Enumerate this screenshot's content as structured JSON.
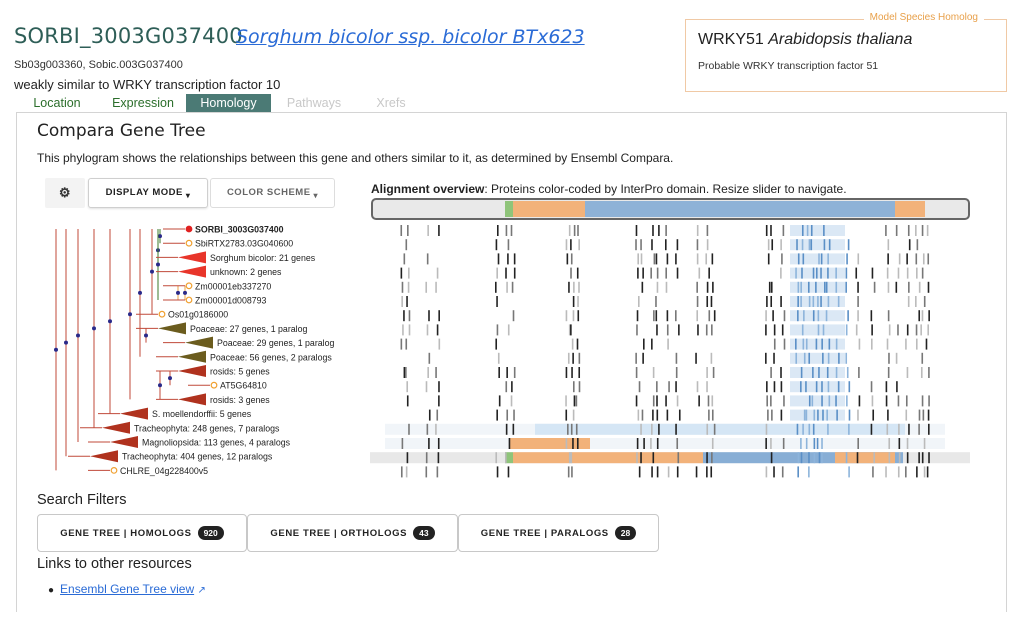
{
  "header": {
    "gene_id": "SORBI_3003G037400",
    "species": "Sorghum bicolor ssp. bicolor BTx623",
    "synonyms": "Sb03g003360, Sobic.003G037400",
    "description": "weakly similar to WRKY transcription factor 10"
  },
  "homolog": {
    "legend": "Model Species Homolog",
    "gene": "WRKY51",
    "species": "Arabidopsis thaliana",
    "description": "Probable WRKY transcription factor 51"
  },
  "tabs": [
    {
      "label": "Location",
      "state": "enabled"
    },
    {
      "label": "Expression",
      "state": "enabled"
    },
    {
      "label": "Homology",
      "state": "active"
    },
    {
      "label": "Pathways",
      "state": "disabled"
    },
    {
      "label": "Xrefs",
      "state": "disabled"
    }
  ],
  "panel": {
    "title": "Compara Gene Tree",
    "description": "This phylogram shows the relationships between this gene and others similar to it, as determined by Ensembl Compara."
  },
  "toolbar": {
    "settings_icon": "gear-icon",
    "display_mode": "DISPLAY MODE",
    "color_scheme": "COLOR SCHEME"
  },
  "alignment": {
    "title_bold": "Alignment overview",
    "title_rest": ": Proteins color-coded by InterPro domain. Resize slider to navigate."
  },
  "tree": {
    "leaves": [
      {
        "label": "SORBI_3003G037400",
        "type": "gene",
        "bold": true,
        "color": "#e02020"
      },
      {
        "label": "SbiRTX2783.03G040600",
        "type": "gene",
        "color": "#f0a030"
      },
      {
        "label": "Sorghum bicolor: 21 genes",
        "type": "clade",
        "color": "#e8352a"
      },
      {
        "label": "unknown: 2 genes",
        "type": "clade",
        "color": "#e8352a"
      },
      {
        "label": "Zm00001eb337270",
        "type": "gene",
        "color": "#f0a030"
      },
      {
        "label": "Zm00001d008793",
        "type": "gene",
        "color": "#f0a030"
      },
      {
        "label": "Os01g0186000",
        "type": "gene",
        "color": "#f0a030"
      },
      {
        "label": "Poaceae: 27 genes, 1 paralog",
        "type": "clade",
        "color": "#6b5c1e"
      },
      {
        "label": "Poaceae: 29 genes, 1 paralog",
        "type": "clade",
        "color": "#6b5c1e"
      },
      {
        "label": "Poaceae: 56 genes, 2 paralogs",
        "type": "clade",
        "color": "#6b5c1e"
      },
      {
        "label": "rosids: 5 genes",
        "type": "clade",
        "color": "#b0321e"
      },
      {
        "label": "AT5G64810",
        "type": "gene",
        "color": "#f0a030"
      },
      {
        "label": "rosids: 3 genes",
        "type": "clade",
        "color": "#b0321e"
      },
      {
        "label": "S. moellendorffii: 5 genes",
        "type": "clade",
        "color": "#b0321e"
      },
      {
        "label": "Tracheophyta: 248 genes, 7 paralogs",
        "type": "clade",
        "color": "#b0321e"
      },
      {
        "label": "Magnoliopsida: 113 genes, 4 paralogs",
        "type": "clade",
        "color": "#b0321e"
      },
      {
        "label": "Tracheophyta: 404 genes, 12 paralogs",
        "type": "clade",
        "color": "#b0321e"
      },
      {
        "label": "CHLRE_04g228400v5",
        "type": "gene",
        "color": "#f0a030"
      }
    ]
  },
  "colors": {
    "accent": "#4b7a75",
    "link": "#2a6bd6",
    "domain_orange": "#f2b27a",
    "domain_blue": "#6f9fd0",
    "domain_green": "#8fc47a",
    "domain_light_blue": "#d5e6f5"
  },
  "search_filters": {
    "title": "Search Filters",
    "buttons": [
      {
        "label": "GENE TREE | HOMOLOGS",
        "count": "920"
      },
      {
        "label": "GENE TREE | ORTHOLOGS",
        "count": "43"
      },
      {
        "label": "GENE TREE | PARALOGS",
        "count": "28"
      }
    ]
  },
  "links": {
    "title": "Links to other resources",
    "items": [
      {
        "label": "Ensembl Gene Tree view",
        "icon": "external-link-icon"
      }
    ]
  }
}
